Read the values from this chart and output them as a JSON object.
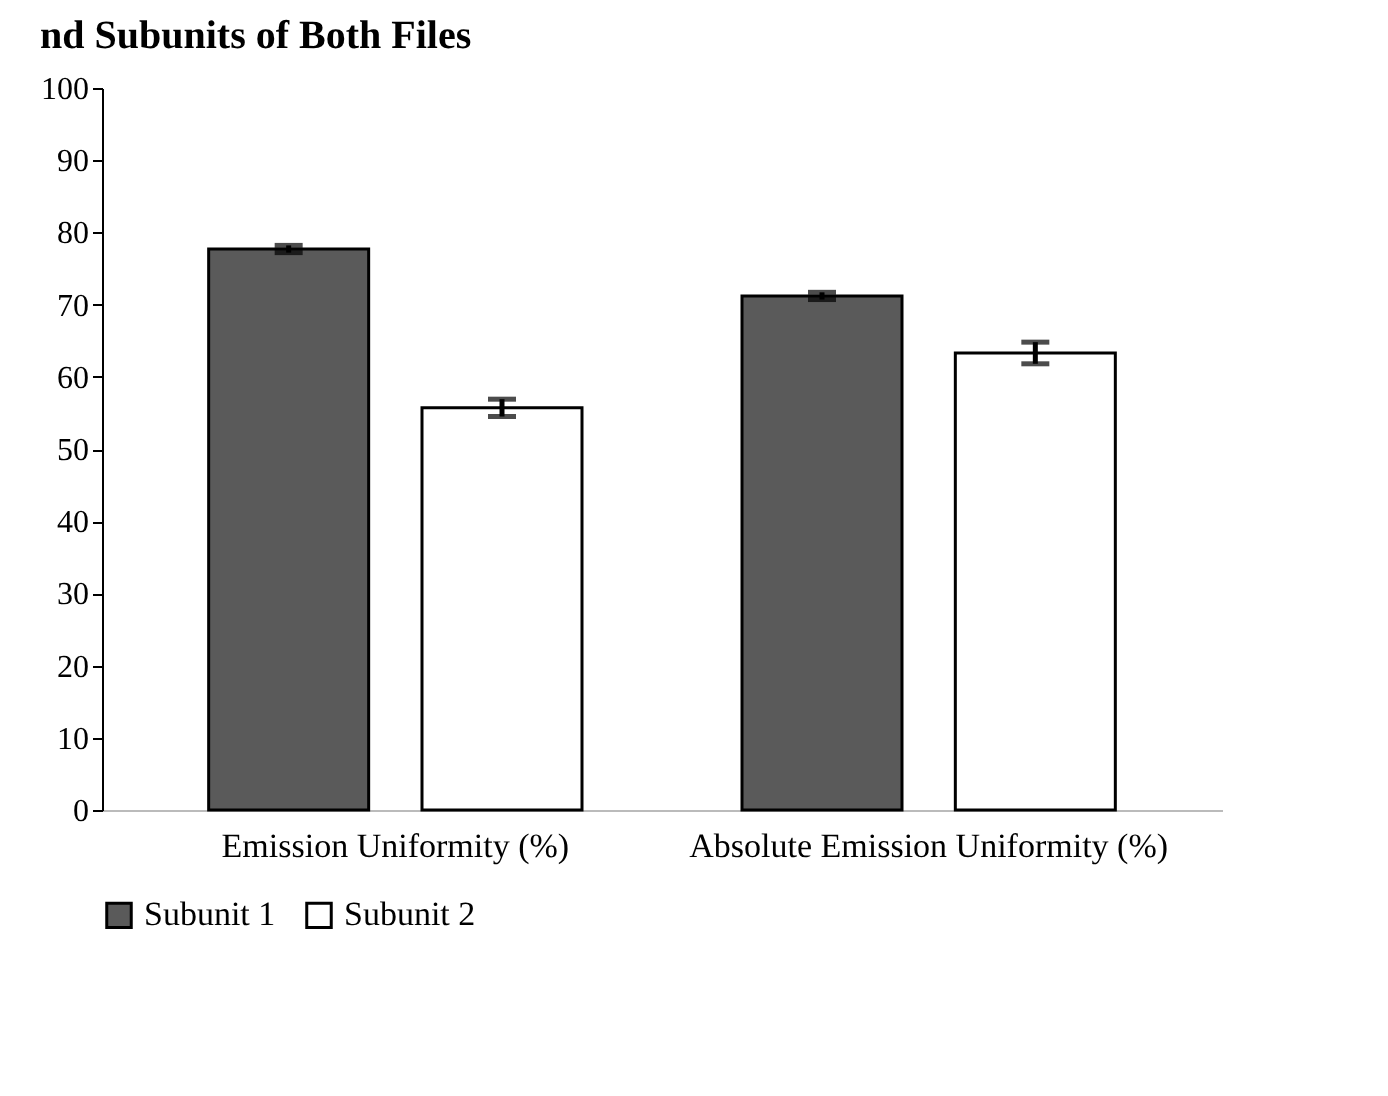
{
  "chart_data": {
    "type": "bar",
    "title": "nd Subunits of Both Files",
    "categories": [
      "Emission Uniformity (%)",
      "Absolute Emission Uniformity (%)"
    ],
    "series": [
      {
        "name": "Subunit 1",
        "color": "#5a5a5a",
        "values": [
          77.7,
          71.2
        ],
        "errors": [
          0.5,
          0.5
        ]
      },
      {
        "name": "Subunit 2",
        "color": "#ffffff",
        "values": [
          55.7,
          63.3
        ],
        "errors": [
          1.2,
          1.5
        ]
      }
    ],
    "ylim": [
      0,
      100
    ],
    "yticks": [
      0,
      10,
      20,
      30,
      40,
      50,
      60,
      70,
      80,
      90,
      100
    ],
    "grid": false,
    "legend": "bottom"
  }
}
